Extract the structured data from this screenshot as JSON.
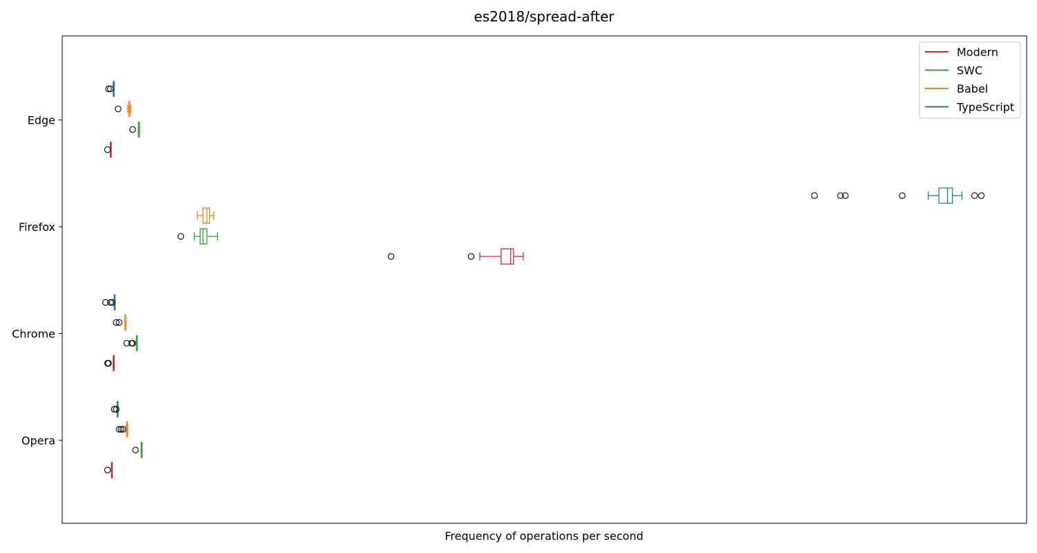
{
  "chart_data": {
    "type": "boxplot",
    "orientation": "horizontal",
    "title": "es2018/spread-after",
    "xlabel": "Frequency of operations per second",
    "ylabel": "",
    "x_ticks_shown": false,
    "xlim": [
      0,
      1000
    ],
    "grid": false,
    "legend_position": "top-right",
    "categories": [
      "Edge",
      "Firefox",
      "Chrome",
      "Opera"
    ],
    "series": [
      {
        "name": "Modern",
        "color": "#d62728",
        "boxes": [
          {
            "category": "Edge",
            "whislo": 50,
            "q1": 50,
            "med": 50,
            "q3": 50,
            "whishi": 50,
            "fliers": [
              47
            ]
          },
          {
            "category": "Firefox",
            "whislo": 433,
            "q1": 455,
            "med": 465,
            "q3": 468,
            "whishi": 478,
            "fliers": [
              341,
              424
            ]
          },
          {
            "category": "Chrome",
            "whislo": 53,
            "q1": 53,
            "med": 53,
            "q3": 53,
            "whishi": 53,
            "fliers": [
              47,
              48
            ]
          },
          {
            "category": "Opera",
            "whislo": 51,
            "q1": 51,
            "med": 51,
            "q3": 51,
            "whishi": 51,
            "fliers": [
              47
            ]
          }
        ]
      },
      {
        "name": "SWC",
        "color": "#2ca02c",
        "boxes": [
          {
            "category": "Edge",
            "whislo": 79,
            "q1": 79,
            "med": 80,
            "q3": 80,
            "whishi": 80,
            "fliers": [
              73
            ]
          },
          {
            "category": "Firefox",
            "whislo": 137,
            "q1": 143,
            "med": 146,
            "q3": 150,
            "whishi": 161,
            "fliers": [
              123
            ]
          },
          {
            "category": "Chrome",
            "whislo": 77,
            "q1": 77,
            "med": 77,
            "q3": 77,
            "whishi": 77,
            "fliers": [
              67,
              72,
              73
            ]
          },
          {
            "category": "Opera",
            "whislo": 82,
            "q1": 82,
            "med": 82,
            "q3": 82,
            "whishi": 82,
            "fliers": [
              76
            ]
          }
        ]
      },
      {
        "name": "Babel",
        "color": "#ff7f0e",
        "boxes": [
          {
            "category": "Edge",
            "whislo": 68,
            "q1": 69,
            "med": 70,
            "q3": 70,
            "whishi": 71,
            "fliers": [
              58
            ]
          },
          {
            "category": "Firefox",
            "whislo": 140,
            "q1": 146,
            "med": 150,
            "q3": 153,
            "whishi": 157,
            "fliers": []
          },
          {
            "category": "Chrome",
            "whislo": 65,
            "q1": 65,
            "med": 65,
            "q3": 66,
            "whishi": 66,
            "fliers": [
              56,
              59
            ]
          },
          {
            "category": "Opera",
            "whislo": 66,
            "q1": 67,
            "med": 67,
            "q3": 67,
            "whishi": 68,
            "fliers": [
              59,
              61,
              63
            ]
          }
        ]
      },
      {
        "name": "TypeScript",
        "color": "#1f77b4",
        "boxes": [
          {
            "category": "Edge",
            "whislo": 53,
            "q1": 53,
            "med": 53,
            "q3": 53,
            "whishi": 53,
            "fliers": [
              48,
              50
            ]
          },
          {
            "category": "Firefox",
            "whislo": 898,
            "q1": 909,
            "med": 918,
            "q3": 923,
            "whishi": 933,
            "fliers": [
              780,
              807,
              812,
              871,
              946,
              953
            ]
          },
          {
            "category": "Chrome",
            "whislo": 54,
            "q1": 54,
            "med": 54,
            "q3": 54,
            "whishi": 54,
            "fliers": [
              45,
              50,
              52
            ]
          },
          {
            "category": "Opera",
            "whislo": 57,
            "q1": 57,
            "med": 57,
            "q3": 57,
            "whishi": 57,
            "fliers": [
              54,
              56
            ]
          }
        ]
      }
    ]
  }
}
